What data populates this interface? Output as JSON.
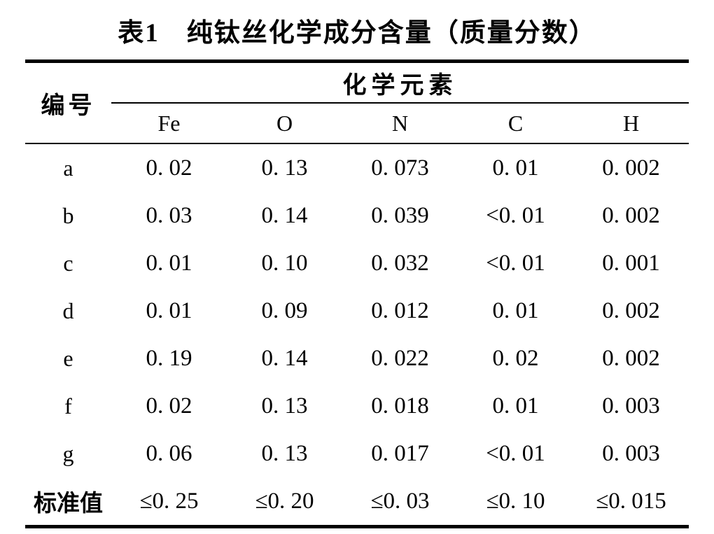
{
  "title": "表1　纯钛丝化学成分含量（质量分数）",
  "table": {
    "row_header_label": "编号",
    "group_header_label": "化学元素",
    "element_columns": [
      "Fe",
      "O",
      "N",
      "C",
      "H"
    ],
    "rows": [
      {
        "label": "a",
        "values": [
          "0. 02",
          "0. 13",
          "0. 073",
          "0. 01",
          "0. 002"
        ]
      },
      {
        "label": "b",
        "values": [
          "0. 03",
          "0. 14",
          "0. 039",
          "<0. 01",
          "0. 002"
        ]
      },
      {
        "label": "c",
        "values": [
          "0. 01",
          "0. 10",
          "0. 032",
          "<0. 01",
          "0. 001"
        ]
      },
      {
        "label": "d",
        "values": [
          "0. 01",
          "0. 09",
          "0. 012",
          "0. 01",
          "0. 002"
        ]
      },
      {
        "label": "e",
        "values": [
          "0. 19",
          "0. 14",
          "0. 022",
          "0. 02",
          "0. 002"
        ]
      },
      {
        "label": "f",
        "values": [
          "0. 02",
          "0. 13",
          "0. 018",
          "0. 01",
          "0. 003"
        ]
      },
      {
        "label": "g",
        "values": [
          "0. 06",
          "0. 13",
          "0. 017",
          "<0. 01",
          "0. 003"
        ]
      },
      {
        "label": "标准值",
        "values": [
          "≤0. 25",
          "≤0. 20",
          "≤0. 03",
          "≤0. 10",
          "≤0. 015"
        ]
      }
    ]
  },
  "colors": {
    "text": "#000000",
    "background": "#ffffff",
    "rule": "#000000"
  }
}
